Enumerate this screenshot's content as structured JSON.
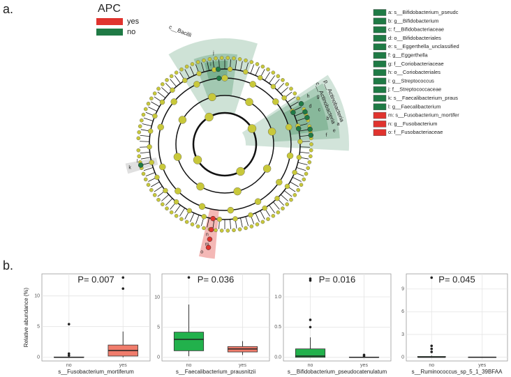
{
  "panel_a_label": "a.",
  "panel_b_label": "b.",
  "cladogram": {
    "legend_title": "APC",
    "groups": [
      {
        "name": "yes",
        "color": "#e0332e"
      },
      {
        "name": "no",
        "color": "#1f7a45"
      }
    ],
    "clade_labels": [
      "c__Bacilli",
      "p__Actinobacteria",
      "c__Actinobacteria"
    ],
    "node_letters": [
      "a",
      "b",
      "c",
      "d",
      "e",
      "f",
      "g",
      "h",
      "i",
      "j",
      "k",
      "l",
      "m",
      "n",
      "o"
    ],
    "taxa": [
      {
        "label": "a: s__Bifidobacterium_pseudc",
        "color": "#1f7a45"
      },
      {
        "label": "b: g__Bifidobacterium",
        "color": "#1f7a45"
      },
      {
        "label": "c: f__Bifidobacteriaceae",
        "color": "#1f7a45"
      },
      {
        "label": "d: o__Bifidobacteriales",
        "color": "#1f7a45"
      },
      {
        "label": "e: s__Eggerthella_unclassified",
        "color": "#1f7a45"
      },
      {
        "label": "f: g__Eggerthella",
        "color": "#1f7a45"
      },
      {
        "label": "g: f__Coriobacteriaceae",
        "color": "#1f7a45"
      },
      {
        "label": "h: o__Coriobacteriales",
        "color": "#1f7a45"
      },
      {
        "label": "i: g__Streptococcus",
        "color": "#1f7a45"
      },
      {
        "label": "j: f__Streptococcaceae",
        "color": "#1f7a45"
      },
      {
        "label": "k: s__Faecalibacterium_praus",
        "color": "#1f7a45"
      },
      {
        "label": "l: g__Faecalibacterium",
        "color": "#1f7a45"
      },
      {
        "label": "m: s__Fusobacterium_mortifer",
        "color": "#e0332e"
      },
      {
        "label": "n: g__Fusobacterium",
        "color": "#e0332e"
      },
      {
        "label": "o: f__Fusobacteriaceae",
        "color": "#e0332e"
      }
    ]
  },
  "chart_data": [
    {
      "type": "box",
      "title": "P= 0.007",
      "y_label": "Relative abundance (%)",
      "x_label": "s__Fusobacterium_mortiferum",
      "categories": [
        "no",
        "yes"
      ],
      "colors": [
        "#22b14c",
        "#f07c6c"
      ],
      "grid": true,
      "boxes": [
        {
          "low": 0,
          "q1": 0,
          "median": 0,
          "q3": 0.05,
          "high": 0.1,
          "outliers": [
            0.3,
            0.6,
            5.4
          ]
        },
        {
          "low": 0,
          "q1": 0.2,
          "median": 1.1,
          "q3": 2.0,
          "high": 4.2,
          "outliers": [
            11.2,
            13.0
          ]
        }
      ],
      "ylim": [
        -0.6,
        13.6
      ],
      "yticks": [
        0,
        5,
        10
      ]
    },
    {
      "type": "box",
      "title": "P= 0.036",
      "x_label": "s__Faecalibacterium_prausnitzii",
      "categories": [
        "no",
        "yes"
      ],
      "colors": [
        "#22b14c",
        "#f07c6c"
      ],
      "grid": true,
      "boxes": [
        {
          "low": 0.2,
          "q1": 1.1,
          "median": 3.0,
          "q3": 4.2,
          "high": 8.8,
          "outliers": [
            13.3
          ]
        },
        {
          "low": 0.4,
          "q1": 0.9,
          "median": 1.4,
          "q3": 1.8,
          "high": 2.7,
          "outliers": []
        }
      ],
      "ylim": [
        -0.6,
        13.9
      ],
      "yticks": [
        0,
        5,
        10
      ]
    },
    {
      "type": "box",
      "title": "P= 0.016",
      "x_label": "s__Bifidobacterium_pseudocatenulatum",
      "categories": [
        "no",
        "yes"
      ],
      "colors": [
        "#22b14c",
        "#f07c6c"
      ],
      "grid": true,
      "boxes": [
        {
          "low": 0,
          "q1": 0,
          "median": 0.02,
          "q3": 0.14,
          "high": 0.33,
          "outliers": [
            0.5,
            0.62,
            1.27,
            1.3
          ]
        },
        {
          "low": 0,
          "q1": 0,
          "median": 0,
          "q3": 0.005,
          "high": 0.01,
          "outliers": [
            0.02,
            0.04
          ]
        }
      ],
      "ylim": [
        -0.06,
        1.38
      ],
      "yticks": [
        {
          "value": 0,
          "label": "0.0"
        },
        0.5,
        {
          "value": 1,
          "label": "1.0"
        }
      ]
    },
    {
      "type": "box",
      "title": "P= 0.045",
      "x_label": "s__Ruminococcus_sp_5_1_39BFAA",
      "categories": [
        "no",
        "yes"
      ],
      "colors": [
        "#22b14c",
        "#f07c6c"
      ],
      "grid": true,
      "boxes": [
        {
          "low": 0,
          "q1": 0,
          "median": 0,
          "q3": 0.1,
          "high": 0.2,
          "outliers": [
            0.7,
            1.1,
            1.5,
            10.5
          ]
        },
        {
          "low": 0,
          "q1": 0,
          "median": 0,
          "q3": 0.01,
          "high": 0.02,
          "outliers": []
        }
      ],
      "ylim": [
        -0.5,
        11
      ],
      "yticks": [
        0,
        3,
        6,
        9
      ]
    }
  ]
}
